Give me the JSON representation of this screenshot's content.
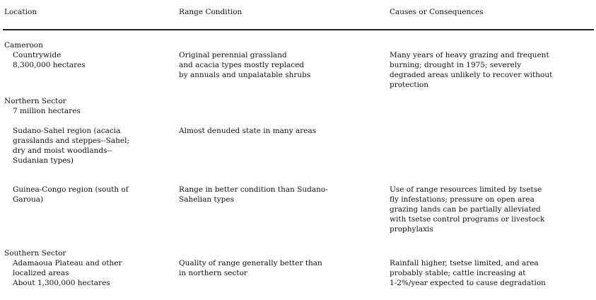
{
  "headers": [
    "Location",
    "Range Condition",
    "Causes or Consequences"
  ],
  "rows": [
    {
      "id": "cameroon",
      "heading": "Cameroon",
      "location": [
        "Countrywide",
        "8,300,000 hectares"
      ],
      "condition": [
        "Original perennial grassland",
        "and acacia types mostly replaced",
        "by annuals and unpalatable shrubs"
      ],
      "causes": [
        "Many years of heavy grazing and frequent",
        "burning; drought in 1975; severely",
        "degraded areas unlikely to recover without",
        "protection"
      ]
    },
    {
      "id": "northern",
      "heading": "Northern Sector",
      "location": [
        "7 million hectares"
      ],
      "condition": [],
      "causes": []
    },
    {
      "id": "sudano-sahel",
      "heading": "",
      "location": [
        "Sudano-Sahel region (acacia",
        "grasslands and steppes--Sahel;",
        "dry and moist woodlands--",
        "Sudanian types)"
      ],
      "condition": [
        "Almost denuded state in many areas"
      ],
      "causes": []
    },
    {
      "id": "guinea-congo",
      "heading": "",
      "location": [
        "Guinea-Congo region (south of",
        "Garoua)"
      ],
      "condition": [
        "Range in better condition than Sudano-",
        "Sahelian types"
      ],
      "causes": [
        "Use of range resources limited by tsetse",
        "fly infestations; pressure on open area",
        "grazing lands can be partially alleviated",
        "with tsetse control programs or livestock",
        "prophylaxis"
      ]
    },
    {
      "id": "southern",
      "heading": "Southern Sector",
      "location": [
        "Adamaoua Plateau and other",
        "localized areas",
        "About 1,300,000 hectares"
      ],
      "condition": [
        "Quality of range generally better than",
        "in northern sector"
      ],
      "causes": [
        "Rainfall higher, tsetse limited, and area",
        "probably stable; cattle increasing at",
        "1-2%/year expected to cause degradation"
      ]
    }
  ]
}
